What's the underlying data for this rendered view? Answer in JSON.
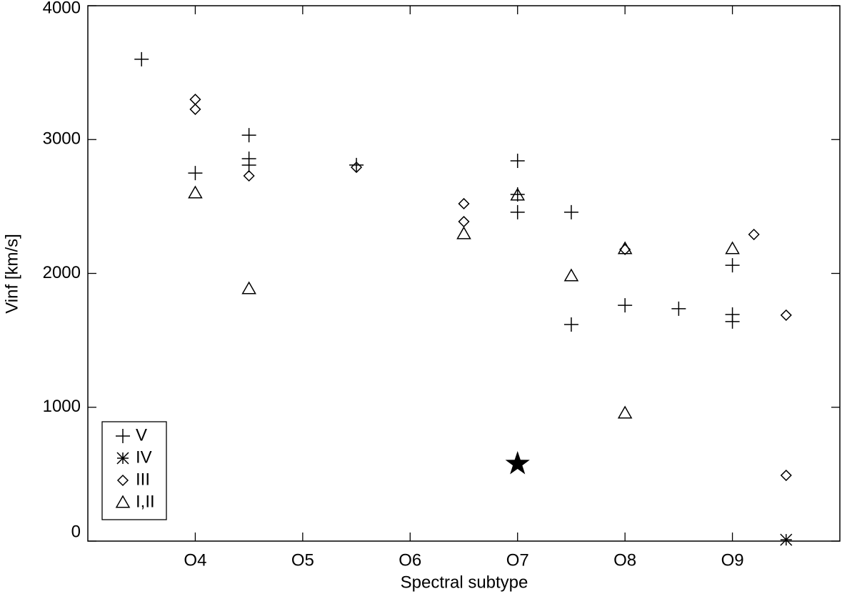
{
  "chart_data": {
    "type": "scatter",
    "x_label": "Spectral subtype",
    "y_label": "Vinf [km/s]",
    "xlim": [
      3,
      10
    ],
    "ylim": [
      0,
      4000
    ],
    "xticks": [
      {
        "value": 4,
        "label": "O4"
      },
      {
        "value": 5,
        "label": "O5"
      },
      {
        "value": 6,
        "label": "O6"
      },
      {
        "value": 7,
        "label": "O7"
      },
      {
        "value": 8,
        "label": "O8"
      },
      {
        "value": 9,
        "label": "O9"
      }
    ],
    "yticks": [
      0,
      1000,
      2000,
      3000,
      4000
    ],
    "legend": "lower left",
    "series": [
      {
        "name": "V",
        "marker": "plus",
        "color": "#000000",
        "x": [
          3.5,
          4,
          4.5,
          4.5,
          4.5,
          5.5,
          7,
          7,
          7,
          7.5,
          7.5,
          8,
          8.5,
          9,
          9,
          9
        ],
        "values": [
          3600,
          2750,
          3033,
          2857,
          2809,
          2810,
          2841,
          2457,
          2590,
          2457,
          1618,
          1762,
          1736,
          2061,
          1693,
          1640
        ]
      },
      {
        "name": "IV",
        "marker": "asterisk",
        "color": "#000000",
        "x": [
          9.5
        ],
        "values": [
          10
        ]
      },
      {
        "name": "III",
        "marker": "diamond",
        "color": "#000000",
        "x": [
          4,
          4,
          4.5,
          5.5,
          6.5,
          6.5,
          8,
          9.2,
          9.5,
          9.5
        ],
        "values": [
          3300,
          3226,
          2729,
          2793,
          2521,
          2387,
          2179,
          2291,
          1688,
          491
        ]
      },
      {
        "name": "I,II",
        "marker": "triangle",
        "color": "#000000",
        "x": [
          4,
          4.5,
          6.5,
          7,
          7.5,
          8,
          8,
          9
        ],
        "values": [
          2601,
          1885,
          2296,
          2585,
          1981,
          2184,
          956,
          2184
        ]
      }
    ],
    "highlight": {
      "marker": "star",
      "color": "#000000",
      "x": 7,
      "value": 577
    }
  }
}
